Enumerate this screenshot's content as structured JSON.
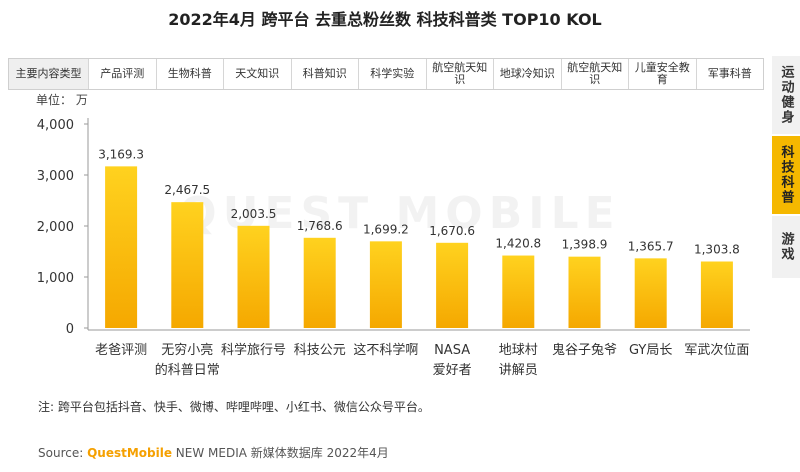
{
  "title": "2022年4月 跨平台 去重总粉丝数 科技科普类 TOP10 KOL",
  "category_bar": {
    "header": "主要内容类型",
    "items": [
      "产品评测",
      "生物科普",
      "天文知识",
      "科普知识",
      "科学实验",
      "航空航天知识",
      "地球冷知识",
      "航空航天知识",
      "儿童安全教育",
      "军事科普"
    ]
  },
  "side_tabs": [
    {
      "label": "运动健身",
      "active": false
    },
    {
      "label": "科技科普",
      "active": true
    },
    {
      "label": "游戏",
      "active": false
    }
  ],
  "unit_label": "单位：  万",
  "chart_data": {
    "type": "bar",
    "title": "2022年4月 跨平台 去重总粉丝数 科技科普类 TOP10 KOL",
    "ylabel": "单位：万",
    "ylim": [
      0,
      4000
    ],
    "yticks": [
      0,
      1000,
      2000,
      3000,
      4000
    ],
    "ytick_labels": [
      "0",
      "1,000",
      "2,000",
      "3,000",
      "4,000"
    ],
    "categories": [
      "老爸评测",
      "无穷小亮的科普日常",
      "科学旅行号",
      "科技公元",
      "这不科学啊",
      "NASA爱好者",
      "地球村讲解员",
      "鬼谷子兔爷",
      "GY局长",
      "军武次位面"
    ],
    "category_lines": [
      [
        "老爸评测"
      ],
      [
        "无穷小亮",
        "的科普日常"
      ],
      [
        "科学旅行号"
      ],
      [
        "科技公元"
      ],
      [
        "这不科学啊"
      ],
      [
        "NASA",
        "爱好者"
      ],
      [
        "地球村",
        "讲解员"
      ],
      [
        "鬼谷子兔爷"
      ],
      [
        "GY局长"
      ],
      [
        "军武次位面"
      ]
    ],
    "values": [
      3169.3,
      2467.5,
      2003.5,
      1768.6,
      1699.2,
      1670.6,
      1420.8,
      1398.9,
      1365.7,
      1303.8
    ],
    "value_labels": [
      "3,169.3",
      "2,467.5",
      "2,003.5",
      "1,768.6",
      "1,699.2",
      "1,670.6",
      "1,420.8",
      "1,398.9",
      "1,365.7",
      "1,303.8"
    ],
    "grid": false,
    "bar_color_top": "#ffd21f",
    "bar_color_bottom": "#f5a800"
  },
  "note": "注:  跨平台包括抖音、快手、微博、哔哩哔哩、小红书、微信公众号平台。",
  "source": {
    "prefix": "Source:  ",
    "brand": "QuestMobile",
    "suffix": " NEW MEDIA 新媒体数据库 2022年4月"
  },
  "watermark": "QUEST MOBILE"
}
